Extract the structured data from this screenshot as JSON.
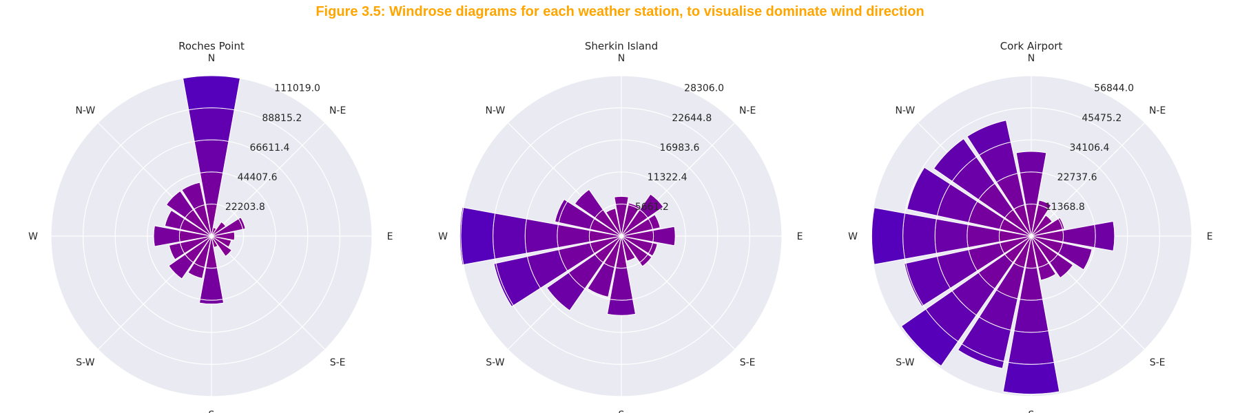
{
  "figure": {
    "title": "Figure 3.5: Windrose diagrams for each weather station, to visualise dominate wind direction",
    "title_color": "#FFA500",
    "background": "#EAEAF2",
    "grid_color": "#FFFFFF",
    "bar_color_inner": "#8B008B",
    "bar_color_outer": "#5500BB"
  },
  "chart_data": [
    {
      "type": "windrose",
      "title": "Roches Point",
      "direction_labels": [
        "N",
        "N-E",
        "E",
        "S-E",
        "S",
        "S-W",
        "W",
        "N-W"
      ],
      "sector_angles_deg": [
        0,
        22.5,
        45,
        67.5,
        90,
        112.5,
        135,
        157.5,
        180,
        202.5,
        225,
        247.5,
        270,
        292.5,
        315,
        337.5
      ],
      "rmax": 111019.0,
      "radial_ticks": [
        22203.8,
        44407.6,
        66611.4,
        88815.2,
        111019.0
      ],
      "radial_tick_labels": [
        "22203.8",
        "44407.6",
        "66611.4",
        "88815.2",
        "111019.0"
      ],
      "values": [
        111000,
        6000,
        12000,
        24000,
        16000,
        14000,
        17000,
        8000,
        47000,
        30000,
        36000,
        30000,
        40000,
        33000,
        38000,
        38000
      ]
    },
    {
      "type": "windrose",
      "title": "Sherkin Island",
      "direction_labels": [
        "N",
        "N-E",
        "E",
        "S-E",
        "S",
        "S-W",
        "W",
        "N-W"
      ],
      "sector_angles_deg": [
        0,
        22.5,
        45,
        67.5,
        90,
        112.5,
        135,
        157.5,
        180,
        202.5,
        225,
        247.5,
        270,
        292.5,
        315,
        337.5
      ],
      "rmax": 28306.0,
      "radial_ticks": [
        5661.2,
        11322.4,
        16983.6,
        22644.8,
        28306.0
      ],
      "radial_tick_labels": [
        "5661.2",
        "11322.4",
        "16983.6",
        "22644.8",
        "28306.0"
      ],
      "values": [
        7000,
        6000,
        9000,
        7000,
        9500,
        6500,
        6500,
        4500,
        14000,
        11000,
        16000,
        23000,
        28500,
        12000,
        10000,
        5000
      ]
    },
    {
      "type": "windrose",
      "title": "Cork Airport",
      "direction_labels": [
        "N",
        "N-E",
        "E",
        "S-E",
        "S",
        "S-W",
        "W",
        "N-W"
      ],
      "sector_angles_deg": [
        0,
        22.5,
        45,
        67.5,
        90,
        112.5,
        135,
        157.5,
        180,
        202.5,
        225,
        247.5,
        270,
        292.5,
        315,
        337.5
      ],
      "rmax": 56844.0,
      "radial_ticks": [
        11368.8,
        22737.6,
        34106.4,
        45475.2,
        56844.0
      ],
      "radial_tick_labels": [
        "11368.8",
        "22737.6",
        "34106.4",
        "45475.2",
        "56844.0"
      ],
      "values": [
        30000,
        13000,
        9000,
        12000,
        29500,
        22000,
        18000,
        16000,
        56000,
        48000,
        56000,
        46000,
        56500,
        45000,
        42000,
        42000
      ]
    }
  ]
}
